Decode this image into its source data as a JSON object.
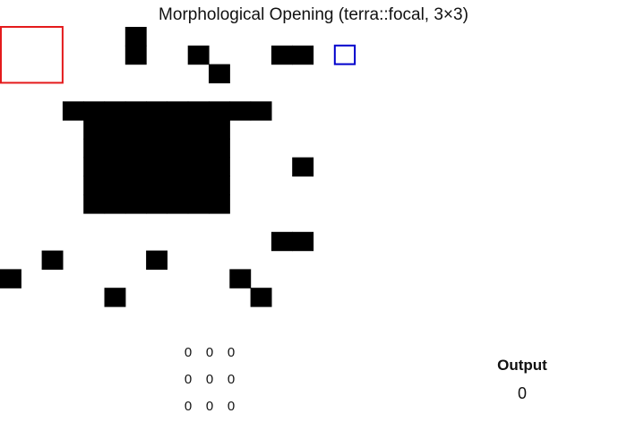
{
  "title": "Morphological Opening (terra::focal, 3×3)",
  "colors": {
    "foreground": "#000000",
    "background": "#ffffff",
    "window_highlight": "#e41a1c",
    "focal_cell": "#0000cc"
  },
  "raster": {
    "rows": 15,
    "cols": 15,
    "foreground_cells": [
      [
        0,
        6
      ],
      [
        1,
        6
      ],
      [
        1,
        9
      ],
      [
        1,
        13
      ],
      [
        1,
        14
      ],
      [
        2,
        10
      ],
      [
        4,
        3
      ],
      [
        4,
        4
      ],
      [
        4,
        5
      ],
      [
        4,
        6
      ],
      [
        4,
        7
      ],
      [
        4,
        8
      ],
      [
        4,
        9
      ],
      [
        4,
        10
      ],
      [
        4,
        11
      ],
      [
        4,
        12
      ],
      [
        5,
        4
      ],
      [
        5,
        5
      ],
      [
        5,
        6
      ],
      [
        5,
        7
      ],
      [
        5,
        8
      ],
      [
        5,
        9
      ],
      [
        5,
        10
      ],
      [
        6,
        4
      ],
      [
        6,
        5
      ],
      [
        6,
        6
      ],
      [
        6,
        7
      ],
      [
        6,
        8
      ],
      [
        6,
        9
      ],
      [
        6,
        10
      ],
      [
        7,
        4
      ],
      [
        7,
        5
      ],
      [
        7,
        6
      ],
      [
        7,
        7
      ],
      [
        7,
        8
      ],
      [
        7,
        9
      ],
      [
        7,
        10
      ],
      [
        7,
        14
      ],
      [
        8,
        4
      ],
      [
        8,
        5
      ],
      [
        8,
        6
      ],
      [
        8,
        7
      ],
      [
        8,
        8
      ],
      [
        8,
        9
      ],
      [
        8,
        10
      ],
      [
        9,
        4
      ],
      [
        9,
        5
      ],
      [
        9,
        6
      ],
      [
        9,
        7
      ],
      [
        9,
        8
      ],
      [
        9,
        9
      ],
      [
        9,
        10
      ],
      [
        11,
        13
      ],
      [
        11,
        14
      ],
      [
        12,
        2
      ],
      [
        12,
        7
      ],
      [
        13,
        0
      ],
      [
        13,
        11
      ],
      [
        14,
        5
      ],
      [
        14,
        12
      ]
    ],
    "window": {
      "row": 0,
      "col": 0,
      "size": 3
    },
    "focal_cell": {
      "row": 1,
      "col": 16
    }
  },
  "kernel": {
    "values": [
      [
        "0",
        "0",
        "0"
      ],
      [
        "0",
        "0",
        "0"
      ],
      [
        "0",
        "0",
        "0"
      ]
    ]
  },
  "output": {
    "label": "Output",
    "value": "0"
  }
}
